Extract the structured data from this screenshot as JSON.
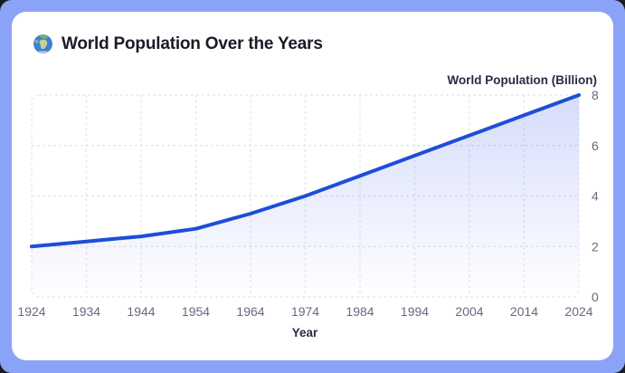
{
  "window": {
    "frame_color": "#8ba3f6",
    "backdrop_color": "#1c1c1e",
    "card_color": "#ffffff"
  },
  "header": {
    "icon": "globe-earth-emoji",
    "title": "World Population Over the Years"
  },
  "chart_data": {
    "type": "area",
    "title": "World Population Over the Years",
    "xlabel": "Year",
    "ylabel": "World Population (Billion)",
    "x": [
      1924,
      1934,
      1944,
      1954,
      1964,
      1974,
      1984,
      1994,
      2004,
      2014,
      2024
    ],
    "values": [
      2.0,
      2.2,
      2.4,
      2.7,
      3.3,
      4.0,
      4.8,
      5.6,
      6.4,
      7.2,
      8.0
    ],
    "x_tick_labels": [
      "1924",
      "1934",
      "1944",
      "1954",
      "1964",
      "1974",
      "1984",
      "1994",
      "2004",
      "2014",
      "2024"
    ],
    "y_ticks": [
      0,
      2,
      4,
      6,
      8
    ],
    "ylim": [
      0,
      8
    ],
    "xlim": [
      1924,
      2024
    ],
    "y_axis_side": "right",
    "grid": "dashed",
    "legend": "none",
    "colors": {
      "line": "#1d4ed8",
      "area_top": "rgba(67, 97, 238, 0.22)",
      "area_bottom": "rgba(67, 97, 238, 0)",
      "grid": "#e4e5ea",
      "tick_label": "#656b7e",
      "axis_title": "#272c42"
    }
  }
}
